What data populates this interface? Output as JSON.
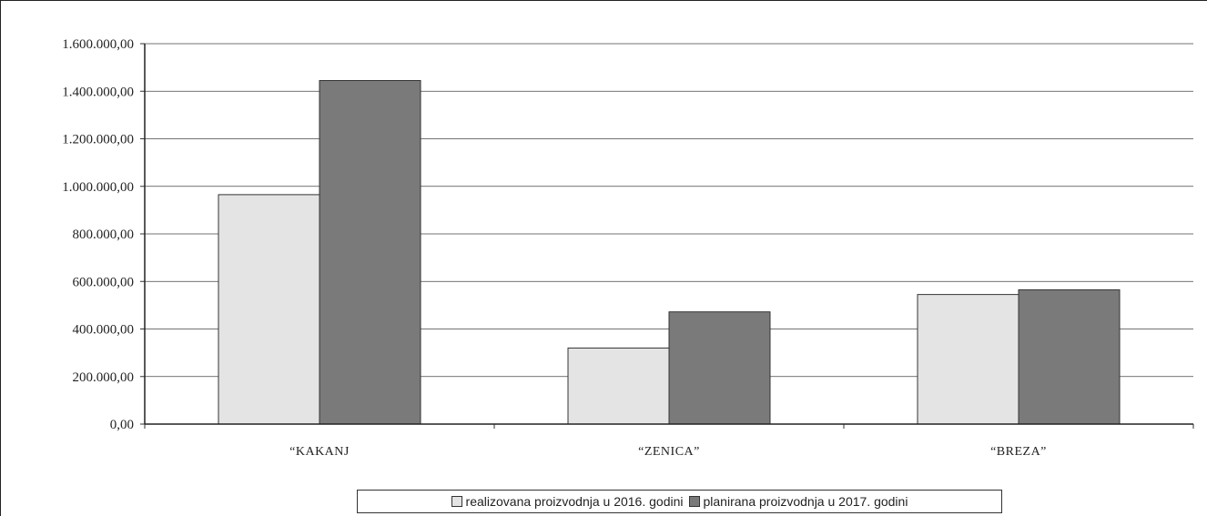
{
  "chart_data": {
    "type": "bar",
    "categories": [
      "“KAKANJ",
      "“ZENICA”",
      "“BREZA”"
    ],
    "series": [
      {
        "name": "realizovana proizvodnja u 2016. godini",
        "values": [
          965000,
          320000,
          545000
        ],
        "color": "#e4e4e4"
      },
      {
        "name": "planirana  proizvodnja u 2017. godini",
        "values": [
          1445000,
          472000,
          565000
        ],
        "color": "#7a7a7a"
      }
    ],
    "yticks": [
      "0,00",
      "200.000,00",
      "400.000,00",
      "600.000,00",
      "800.000,00",
      "1.000.000,00",
      "1.200.000,00",
      "1.400.000,00",
      "1.600.000,00"
    ],
    "ylim": [
      0,
      1600000
    ],
    "grid": true,
    "legend_position": "bottom"
  }
}
